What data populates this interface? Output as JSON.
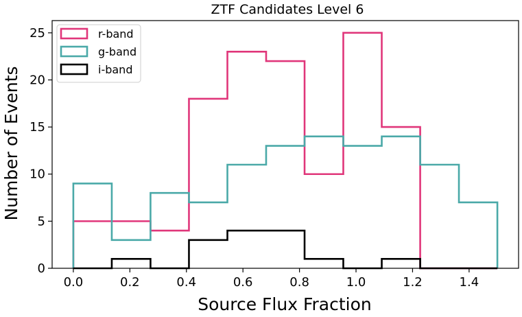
{
  "chart_data": {
    "type": "histogram",
    "title": "ZTF Candidates Level 6",
    "xlabel": "Source Flux Fraction",
    "ylabel": "Number of Events",
    "xlim": [
      -0.075,
      1.575
    ],
    "ylim": [
      0,
      26.3
    ],
    "xticks": [
      0.0,
      0.2,
      0.4,
      0.6,
      0.8,
      1.0,
      1.2,
      1.4
    ],
    "xtick_labels": [
      "0.0",
      "0.2",
      "0.4",
      "0.6",
      "0.8",
      "1.0",
      "1.2",
      "1.4"
    ],
    "yticks": [
      0,
      5,
      10,
      15,
      20,
      25
    ],
    "ytick_labels": [
      "0",
      "5",
      "10",
      "15",
      "20",
      "25"
    ],
    "grid": false,
    "legend_position": "top-left",
    "bin_edges": [
      0.0,
      0.136,
      0.273,
      0.409,
      0.545,
      0.682,
      0.818,
      0.955,
      1.091,
      1.227,
      1.364,
      1.5
    ],
    "series": [
      {
        "name": "r-band",
        "color": "#e0367a",
        "values": [
          5,
          5,
          4,
          18,
          23,
          22,
          10,
          25,
          15,
          0,
          0
        ]
      },
      {
        "name": "g-band",
        "color": "#4aa9a8",
        "values": [
          9,
          3,
          8,
          7,
          11,
          13,
          14,
          13,
          14,
          11,
          7
        ]
      },
      {
        "name": "i-band",
        "color": "#000000",
        "values": [
          0,
          1,
          0,
          3,
          4,
          4,
          1,
          0,
          1,
          0,
          0
        ]
      }
    ]
  }
}
